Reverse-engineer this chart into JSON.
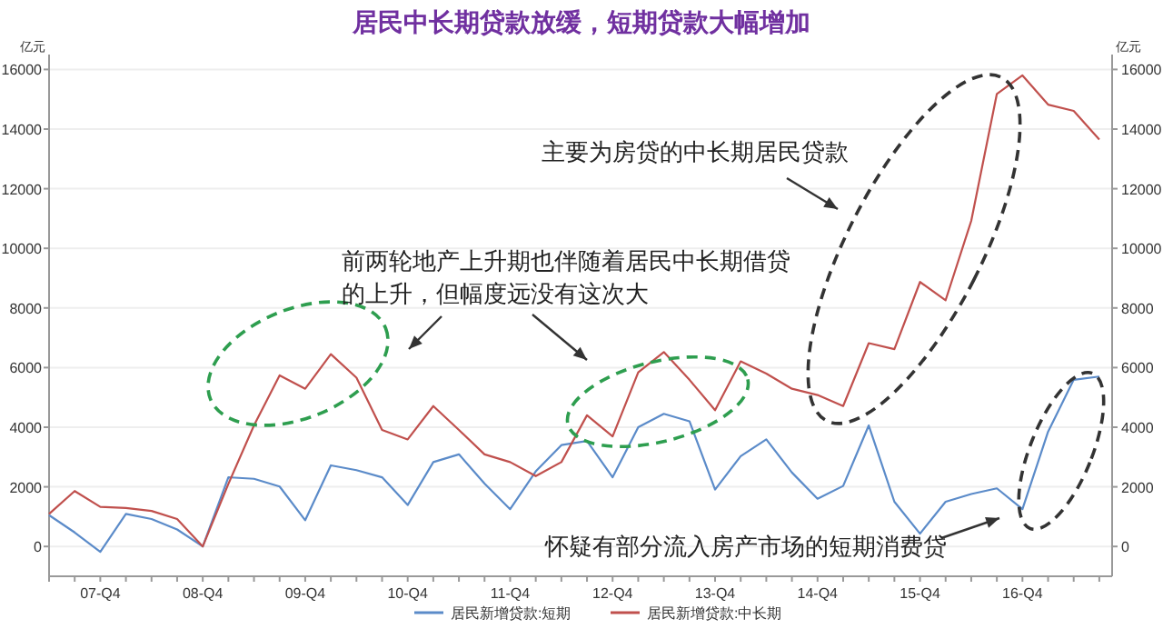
{
  "chart_data": {
    "type": "line",
    "title": "居民中长期贷款放缓，短期贷款大幅增加",
    "ylabel": "亿元",
    "y2label": "亿元",
    "categories": [
      null,
      null,
      "07-Q4",
      null,
      null,
      null,
      "08-Q4",
      null,
      null,
      null,
      "09-Q4",
      null,
      null,
      null,
      "10-Q4",
      null,
      null,
      null,
      "11-Q4",
      null,
      null,
      null,
      "12-Q4",
      null,
      null,
      null,
      "13-Q4",
      null,
      null,
      null,
      "14-Q4",
      null,
      null,
      null,
      "15-Q4",
      null,
      null,
      null,
      "16-Q4",
      null,
      null,
      null
    ],
    "series": [
      {
        "name": "居民新增贷款:短期",
        "color": "#5b8bc9",
        "values": [
          1050,
          470,
          -180,
          1090,
          920,
          570,
          0,
          2320,
          2270,
          2010,
          880,
          2720,
          2560,
          2320,
          1390,
          2830,
          3090,
          2110,
          1250,
          2520,
          3400,
          3540,
          2320,
          4000,
          4450,
          4200,
          1910,
          3030,
          3590,
          2480,
          1600,
          2030,
          4060,
          1500,
          430,
          1500,
          1760,
          1950,
          1250,
          3850,
          5590,
          5700
        ]
      },
      {
        "name": "居民新增贷款:中长期",
        "color": "#c0504d",
        "values": [
          1090,
          1860,
          1330,
          1290,
          1190,
          920,
          0,
          2100,
          4060,
          5740,
          5290,
          6450,
          5660,
          3910,
          3590,
          4710,
          3910,
          3090,
          2830,
          2360,
          2830,
          4400,
          3690,
          5840,
          6520,
          5590,
          4570,
          6210,
          5800,
          5290,
          5080,
          4710,
          6820,
          6620,
          8870,
          8260,
          10920,
          15180,
          15800,
          14820,
          14610,
          13650
        ]
      }
    ],
    "ylim": [
      -1000,
      16500
    ],
    "yticks": [
      0,
      2000,
      4000,
      6000,
      8000,
      10000,
      12000,
      14000,
      16000
    ],
    "y2lim": [
      -1000,
      16500
    ],
    "y2ticks": [
      0,
      2000,
      4000,
      6000,
      8000,
      10000,
      12000,
      14000,
      16000
    ],
    "grid": "y",
    "legend": "bottom",
    "marker": "none",
    "line_style": "solid",
    "annotations": [
      "前两轮地产上升期也伴随着居民中长期借贷的上升，但幅度远没有这次大",
      "主要为房贷的中长期居民贷款",
      "怀疑有部分流入房产市场的短期消费贷"
    ]
  }
}
